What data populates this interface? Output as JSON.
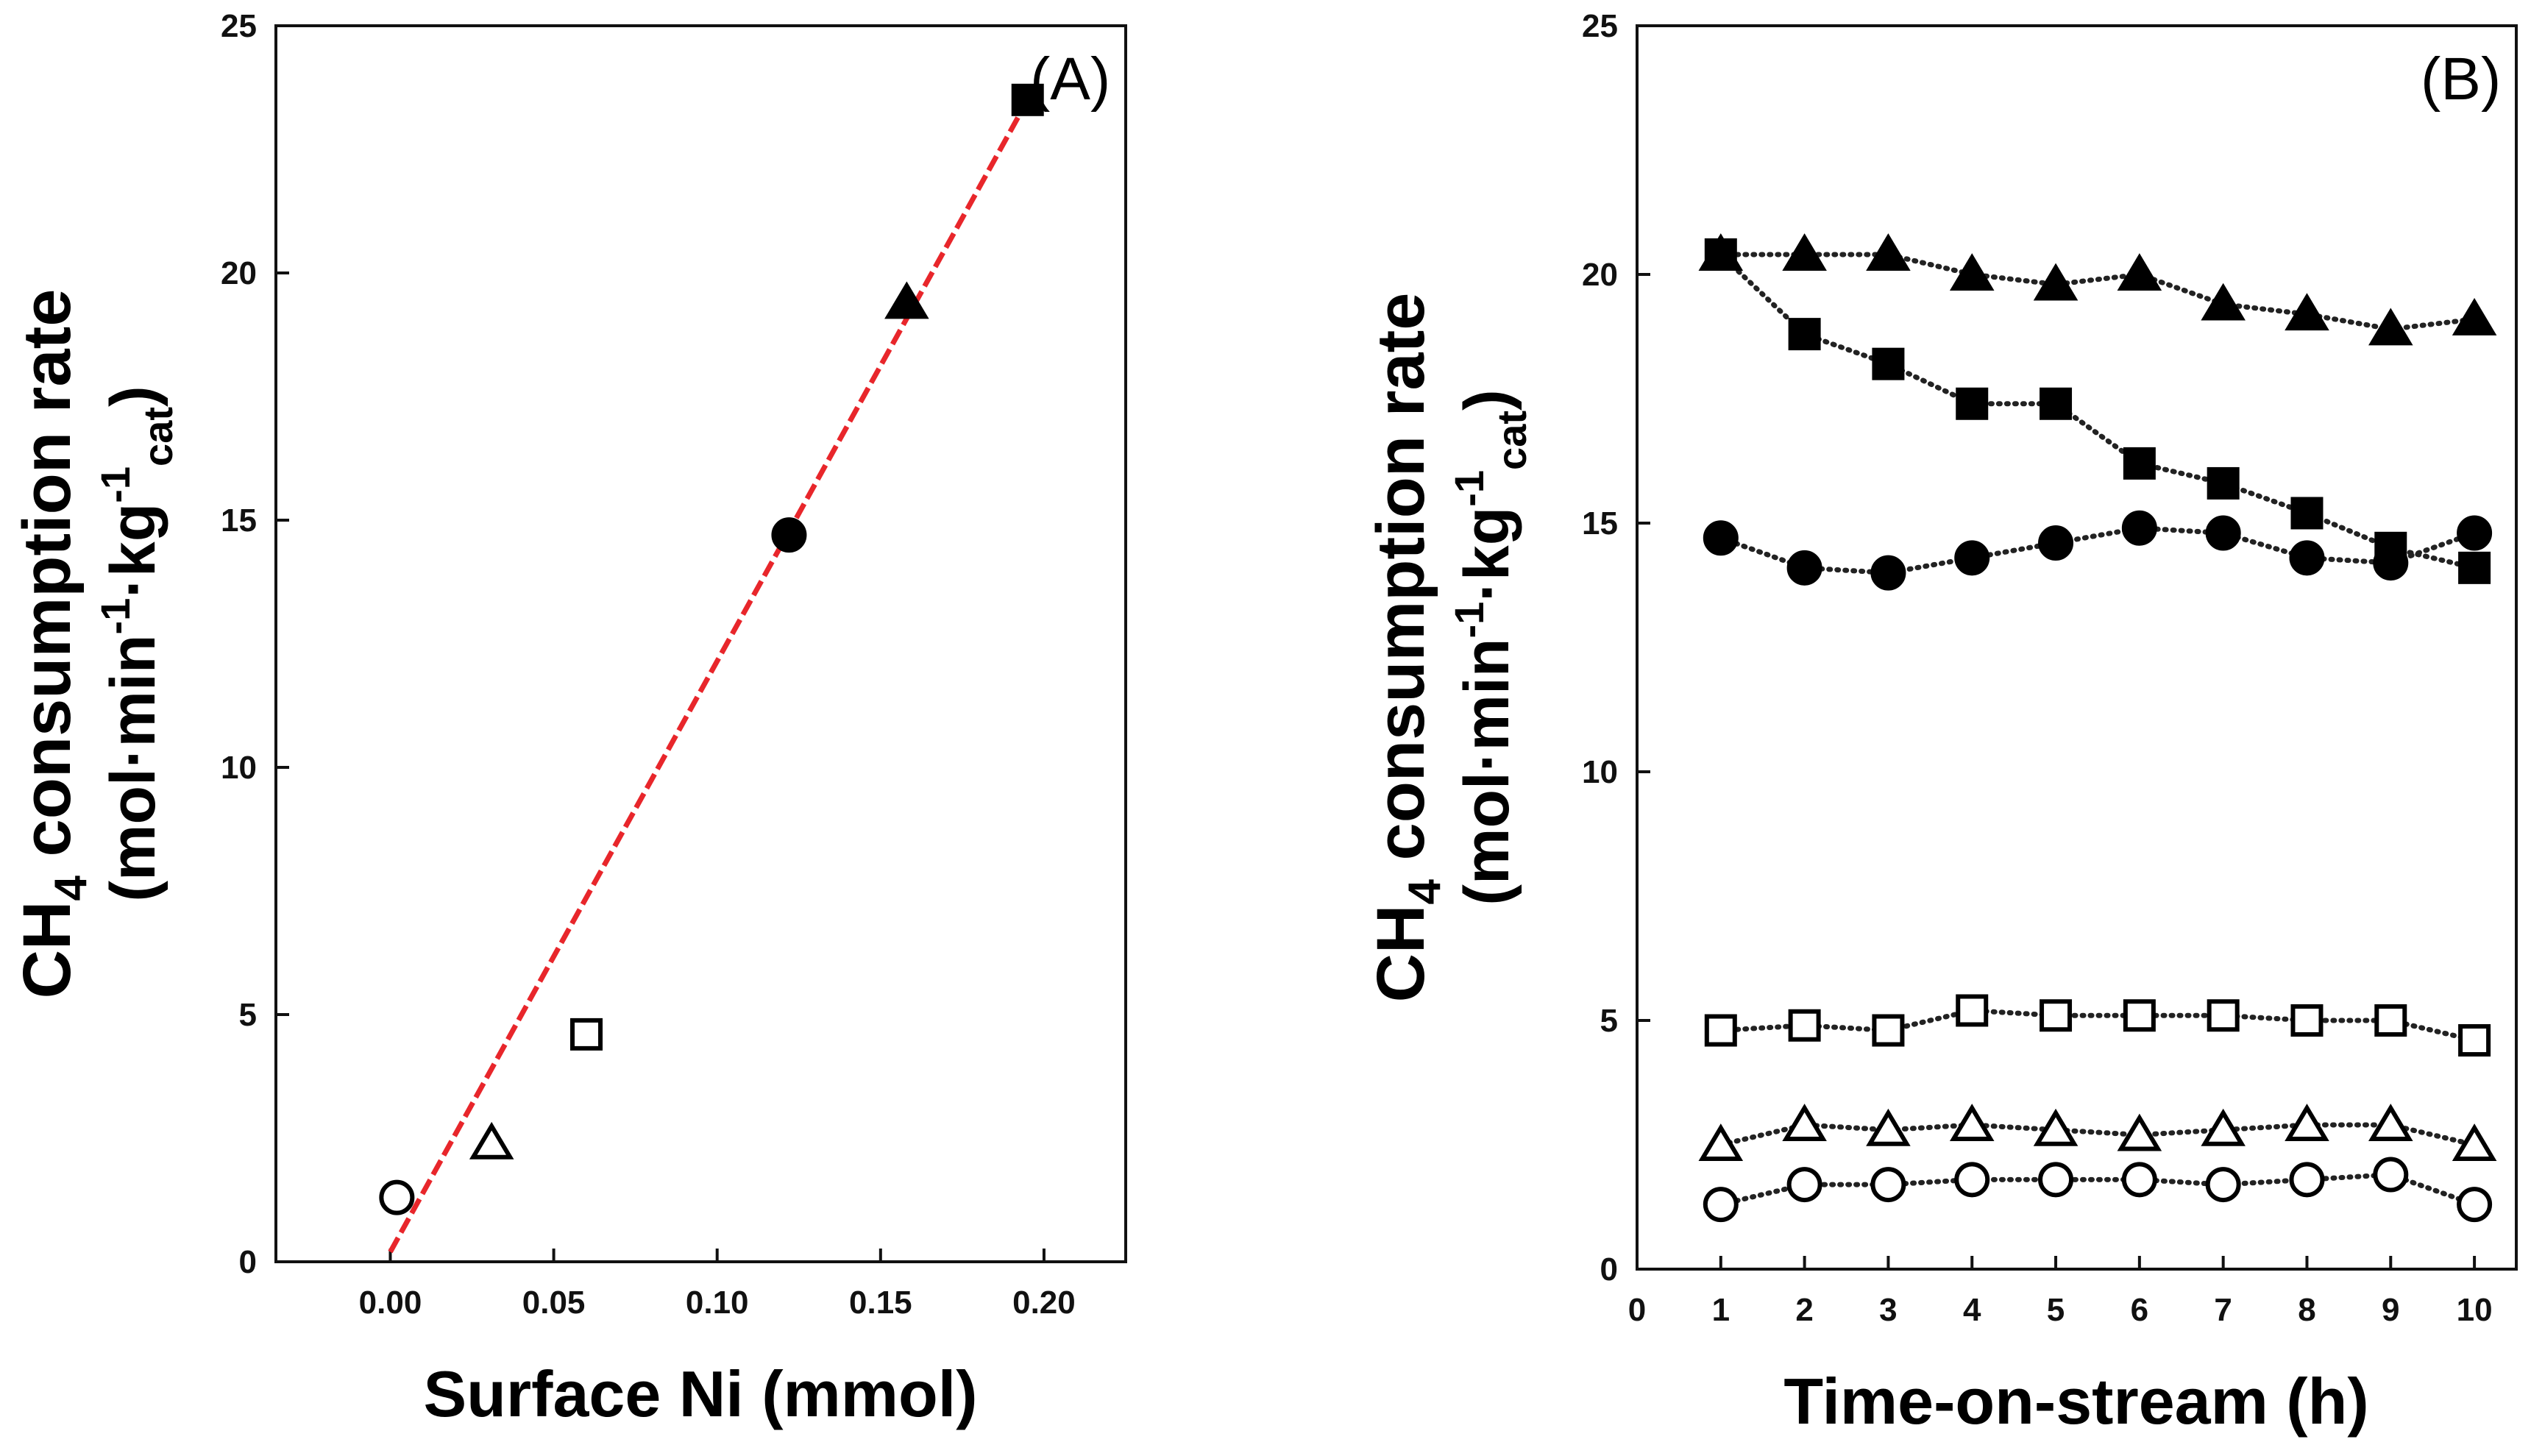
{
  "chart_data": [
    {
      "type": "scatter",
      "panel_label": "(A)",
      "xlabel": "Surface Ni (mmol)",
      "ylabel_main": "CH",
      "ylabel_sub": "4",
      "ylabel_rest": " consumption rate",
      "ylabel_units": [
        "(mol·min",
        "-1",
        "·kg",
        "-1",
        "cat",
        ")"
      ],
      "xlim": [
        -0.035,
        0.225
      ],
      "ylim": [
        0,
        25
      ],
      "xticks": [
        0.0,
        0.05,
        0.1,
        0.15,
        0.2
      ],
      "xtick_labels": [
        "0.00",
        "0.05",
        "0.10",
        "0.15",
        "0.20"
      ],
      "yticks": [
        0,
        5,
        10,
        15,
        20,
        25
      ],
      "ytick_labels": [
        "0",
        "5",
        "10",
        "15",
        "20",
        "25"
      ],
      "points": [
        {
          "x": 0.002,
          "y": 1.3,
          "marker": "circle",
          "filled": false
        },
        {
          "x": 0.031,
          "y": 2.4,
          "marker": "triangle",
          "filled": false
        },
        {
          "x": 0.06,
          "y": 4.6,
          "marker": "square",
          "filled": false
        },
        {
          "x": 0.122,
          "y": 14.7,
          "marker": "circle",
          "filled": true
        },
        {
          "x": 0.158,
          "y": 19.4,
          "marker": "triangle",
          "filled": true
        },
        {
          "x": 0.195,
          "y": 23.5,
          "marker": "square",
          "filled": true
        }
      ],
      "fit_line": {
        "x": [
          0.0,
          0.195
        ],
        "y": [
          0.2,
          23.5
        ],
        "color": "#e8262b",
        "style": "dashed"
      }
    },
    {
      "type": "line",
      "panel_label": "(B)",
      "xlabel": "Time-on-stream (h)",
      "ylabel_main": "CH",
      "ylabel_sub": "4",
      "ylabel_rest": " consumption rate",
      "ylabel_units": [
        "(mol·min",
        "-1",
        "·kg",
        "-1",
        "cat",
        ")"
      ],
      "xlim": [
        0,
        10.5
      ],
      "ylim": [
        0,
        25
      ],
      "xticks": [
        0,
        1,
        2,
        3,
        4,
        5,
        6,
        7,
        8,
        9,
        10
      ],
      "xtick_labels": [
        "0",
        "1",
        "2",
        "3",
        "4",
        "5",
        "6",
        "7",
        "8",
        "9",
        "10"
      ],
      "yticks": [
        0,
        5,
        10,
        15,
        20,
        25
      ],
      "ytick_labels": [
        "0",
        "5",
        "10",
        "15",
        "20",
        "25"
      ],
      "x": [
        1,
        2,
        3,
        4,
        5,
        6,
        7,
        8,
        9,
        10
      ],
      "series": [
        {
          "name": "filled-triangle",
          "marker": "triangle",
          "filled": true,
          "values": [
            20.4,
            20.4,
            20.4,
            20.0,
            19.8,
            20.0,
            19.4,
            19.2,
            18.9,
            19.1
          ]
        },
        {
          "name": "filled-square",
          "marker": "square",
          "filled": true,
          "values": [
            20.4,
            18.8,
            18.2,
            17.4,
            17.4,
            16.2,
            15.8,
            15.2,
            14.5,
            14.1
          ]
        },
        {
          "name": "filled-circle",
          "marker": "circle",
          "filled": true,
          "values": [
            14.7,
            14.1,
            14.0,
            14.3,
            14.6,
            14.9,
            14.8,
            14.3,
            14.2,
            14.8
          ]
        },
        {
          "name": "open-square",
          "marker": "square",
          "filled": false,
          "values": [
            4.8,
            4.9,
            4.8,
            5.2,
            5.1,
            5.1,
            5.1,
            5.0,
            5.0,
            4.6
          ]
        },
        {
          "name": "open-triangle",
          "marker": "triangle",
          "filled": false,
          "values": [
            2.5,
            2.9,
            2.8,
            2.9,
            2.8,
            2.7,
            2.8,
            2.9,
            2.9,
            2.5
          ]
        },
        {
          "name": "open-circle",
          "marker": "circle",
          "filled": false,
          "values": [
            1.3,
            1.7,
            1.7,
            1.8,
            1.8,
            1.8,
            1.7,
            1.8,
            1.9,
            1.3
          ]
        }
      ]
    }
  ]
}
